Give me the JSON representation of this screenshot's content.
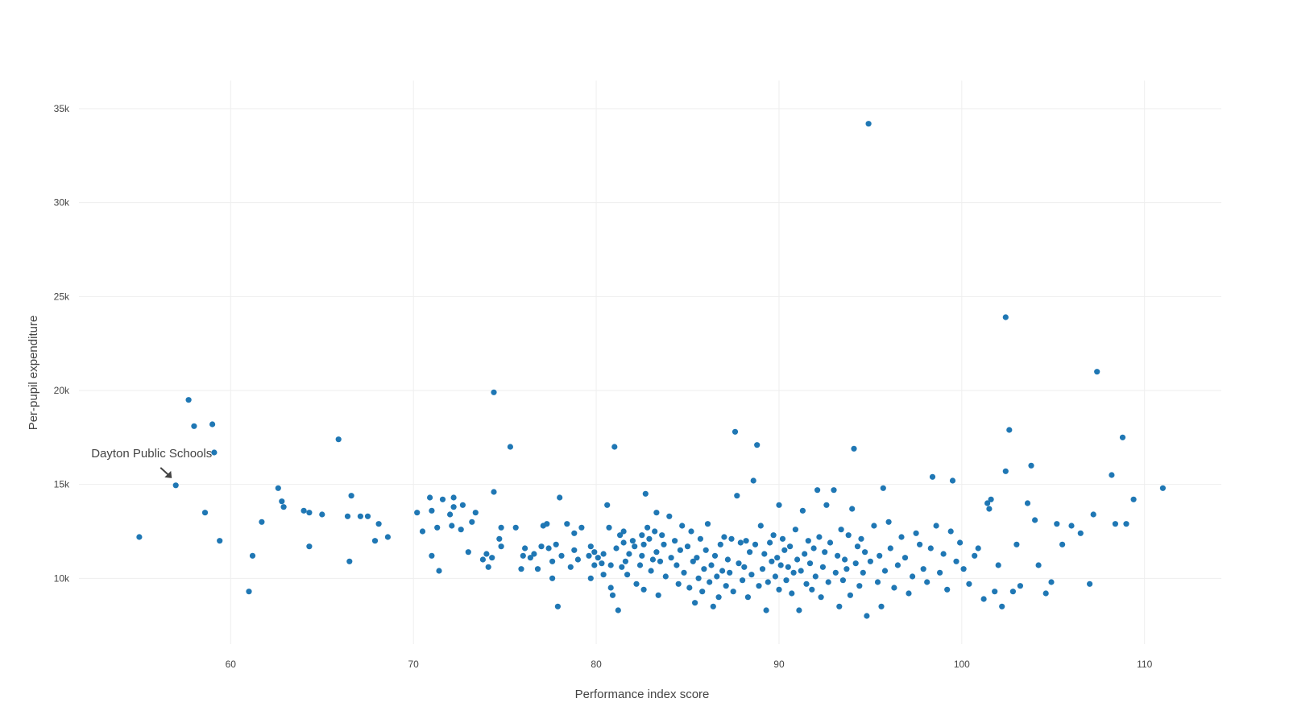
{
  "chart_data": {
    "type": "scatter",
    "title": "",
    "xlabel": "Performance index score",
    "ylabel": "Per-pupil expenditure",
    "xlim": [
      51.7,
      114.2
    ],
    "ylim": [
      6500,
      36500
    ],
    "x_ticks": [
      {
        "value": 60,
        "label": "60"
      },
      {
        "value": 70,
        "label": "70"
      },
      {
        "value": 80,
        "label": "80"
      },
      {
        "value": 90,
        "label": "90"
      },
      {
        "value": 100,
        "label": "100"
      },
      {
        "value": 110,
        "label": "110"
      }
    ],
    "y_ticks": [
      {
        "value": 10000,
        "label": "10k"
      },
      {
        "value": 15000,
        "label": "15k"
      },
      {
        "value": 20000,
        "label": "20k"
      },
      {
        "value": 25000,
        "label": "25k"
      },
      {
        "value": 30000,
        "label": "30k"
      },
      {
        "value": 35000,
        "label": "35k"
      }
    ],
    "grid": true,
    "color": "#1f77b4",
    "annotation": {
      "text": "Dayton Public Schools",
      "x": 57.0,
      "y": 14950
    },
    "points": [
      [
        55.0,
        12200
      ],
      [
        57.0,
        14950
      ],
      [
        57.7,
        19500
      ],
      [
        58.0,
        18100
      ],
      [
        58.6,
        13500
      ],
      [
        59.0,
        18200
      ],
      [
        59.1,
        16700
      ],
      [
        59.4,
        12000
      ],
      [
        61.0,
        9300
      ],
      [
        61.2,
        11200
      ],
      [
        61.7,
        13000
      ],
      [
        62.6,
        14800
      ],
      [
        62.8,
        14100
      ],
      [
        62.9,
        13800
      ],
      [
        64.0,
        13600
      ],
      [
        64.3,
        13500
      ],
      [
        64.3,
        11700
      ],
      [
        65.0,
        13400
      ],
      [
        65.9,
        17400
      ],
      [
        66.4,
        13300
      ],
      [
        66.5,
        10900
      ],
      [
        66.6,
        14400
      ],
      [
        67.1,
        13300
      ],
      [
        67.5,
        13300
      ],
      [
        67.9,
        12000
      ],
      [
        68.1,
        12900
      ],
      [
        68.6,
        12200
      ],
      [
        70.2,
        13500
      ],
      [
        70.5,
        12500
      ],
      [
        70.9,
        14300
      ],
      [
        71.0,
        13600
      ],
      [
        71.0,
        11200
      ],
      [
        71.3,
        12700
      ],
      [
        71.4,
        10400
      ],
      [
        71.6,
        14200
      ],
      [
        72.0,
        13400
      ],
      [
        72.1,
        12800
      ],
      [
        72.2,
        14300
      ],
      [
        72.2,
        13800
      ],
      [
        72.6,
        12600
      ],
      [
        72.7,
        13900
      ],
      [
        73.0,
        11400
      ],
      [
        73.2,
        13000
      ],
      [
        73.4,
        13500
      ],
      [
        73.8,
        11000
      ],
      [
        74.0,
        11300
      ],
      [
        74.1,
        10600
      ],
      [
        74.3,
        11100
      ],
      [
        74.4,
        19900
      ],
      [
        74.4,
        14600
      ],
      [
        74.7,
        12100
      ],
      [
        74.8,
        12700
      ],
      [
        74.8,
        11700
      ],
      [
        75.3,
        17000
      ],
      [
        75.6,
        12700
      ],
      [
        75.9,
        10500
      ],
      [
        76.0,
        11200
      ],
      [
        76.1,
        11600
      ],
      [
        76.4,
        11100
      ],
      [
        76.6,
        11300
      ],
      [
        76.8,
        10500
      ],
      [
        77.0,
        11700
      ],
      [
        77.1,
        12800
      ],
      [
        77.3,
        12900
      ],
      [
        77.4,
        11600
      ],
      [
        77.6,
        10000
      ],
      [
        77.6,
        10900
      ],
      [
        77.8,
        11800
      ],
      [
        77.9,
        8500
      ],
      [
        78.0,
        14300
      ],
      [
        78.1,
        11200
      ],
      [
        78.4,
        12900
      ],
      [
        78.6,
        10600
      ],
      [
        78.8,
        12400
      ],
      [
        78.8,
        11500
      ],
      [
        79.0,
        11000
      ],
      [
        79.2,
        12700
      ],
      [
        79.6,
        11200
      ],
      [
        79.7,
        10000
      ],
      [
        79.7,
        11700
      ],
      [
        79.9,
        10700
      ],
      [
        79.9,
        11400
      ],
      [
        80.1,
        11100
      ],
      [
        80.3,
        10800
      ],
      [
        80.4,
        10200
      ],
      [
        80.4,
        11300
      ],
      [
        80.6,
        13900
      ],
      [
        80.7,
        12700
      ],
      [
        80.8,
        9500
      ],
      [
        80.8,
        10700
      ],
      [
        80.9,
        9100
      ],
      [
        81.0,
        17000
      ],
      [
        81.1,
        11600
      ],
      [
        81.2,
        8300
      ],
      [
        81.3,
        12300
      ],
      [
        81.4,
        10600
      ],
      [
        81.5,
        12500
      ],
      [
        81.5,
        11900
      ],
      [
        81.6,
        10900
      ],
      [
        81.7,
        10200
      ],
      [
        81.8,
        11300
      ],
      [
        82.0,
        12000
      ],
      [
        82.1,
        11700
      ],
      [
        82.2,
        9700
      ],
      [
        82.4,
        10700
      ],
      [
        82.5,
        12300
      ],
      [
        82.5,
        11200
      ],
      [
        82.6,
        11800
      ],
      [
        82.6,
        9400
      ],
      [
        82.7,
        14500
      ],
      [
        82.8,
        12700
      ],
      [
        82.9,
        12100
      ],
      [
        83.0,
        10400
      ],
      [
        83.1,
        11000
      ],
      [
        83.2,
        12500
      ],
      [
        83.3,
        13500
      ],
      [
        83.3,
        11400
      ],
      [
        83.4,
        9100
      ],
      [
        83.5,
        10900
      ],
      [
        83.6,
        12300
      ],
      [
        83.7,
        11800
      ],
      [
        83.8,
        10100
      ],
      [
        84.0,
        13300
      ],
      [
        84.1,
        11100
      ],
      [
        84.3,
        12000
      ],
      [
        84.4,
        10700
      ],
      [
        84.5,
        9700
      ],
      [
        84.6,
        11500
      ],
      [
        84.7,
        12800
      ],
      [
        84.8,
        10300
      ],
      [
        85.0,
        11700
      ],
      [
        85.1,
        9500
      ],
      [
        85.2,
        12500
      ],
      [
        85.3,
        10900
      ],
      [
        85.4,
        8700
      ],
      [
        85.5,
        11100
      ],
      [
        85.6,
        10000
      ],
      [
        85.7,
        12100
      ],
      [
        85.8,
        9300
      ],
      [
        85.9,
        10500
      ],
      [
        86.0,
        11500
      ],
      [
        86.1,
        12900
      ],
      [
        86.2,
        9800
      ],
      [
        86.3,
        10700
      ],
      [
        86.4,
        8500
      ],
      [
        86.5,
        11200
      ],
      [
        86.6,
        10100
      ],
      [
        86.7,
        9000
      ],
      [
        86.8,
        11800
      ],
      [
        86.9,
        10400
      ],
      [
        87.0,
        12200
      ],
      [
        87.1,
        9600
      ],
      [
        87.2,
        11000
      ],
      [
        87.3,
        10300
      ],
      [
        87.4,
        12100
      ],
      [
        87.5,
        9300
      ],
      [
        87.6,
        17800
      ],
      [
        87.7,
        14400
      ],
      [
        87.8,
        10800
      ],
      [
        87.9,
        11900
      ],
      [
        88.0,
        9900
      ],
      [
        88.1,
        10600
      ],
      [
        88.2,
        12000
      ],
      [
        88.3,
        9000
      ],
      [
        88.4,
        11400
      ],
      [
        88.5,
        10200
      ],
      [
        88.6,
        15200
      ],
      [
        88.7,
        11800
      ],
      [
        88.8,
        17100
      ],
      [
        88.9,
        9600
      ],
      [
        89.0,
        12800
      ],
      [
        89.1,
        10500
      ],
      [
        89.2,
        11300
      ],
      [
        89.3,
        8300
      ],
      [
        89.4,
        9800
      ],
      [
        89.5,
        11900
      ],
      [
        89.6,
        10900
      ],
      [
        89.7,
        12300
      ],
      [
        89.8,
        10100
      ],
      [
        89.9,
        11100
      ],
      [
        90.0,
        13900
      ],
      [
        90.0,
        9400
      ],
      [
        90.1,
        10700
      ],
      [
        90.2,
        12100
      ],
      [
        90.3,
        11500
      ],
      [
        90.4,
        9900
      ],
      [
        90.5,
        10600
      ],
      [
        90.6,
        11700
      ],
      [
        90.7,
        9200
      ],
      [
        90.8,
        10300
      ],
      [
        90.9,
        12600
      ],
      [
        91.0,
        11000
      ],
      [
        91.1,
        8300
      ],
      [
        91.2,
        10400
      ],
      [
        91.3,
        13600
      ],
      [
        91.4,
        11300
      ],
      [
        91.5,
        9700
      ],
      [
        91.6,
        12000
      ],
      [
        91.7,
        10800
      ],
      [
        91.8,
        9400
      ],
      [
        91.9,
        11600
      ],
      [
        92.0,
        10100
      ],
      [
        92.1,
        14700
      ],
      [
        92.2,
        12200
      ],
      [
        92.3,
        9000
      ],
      [
        92.4,
        10600
      ],
      [
        92.5,
        11400
      ],
      [
        92.6,
        13900
      ],
      [
        92.7,
        9800
      ],
      [
        92.8,
        11900
      ],
      [
        93.0,
        14700
      ],
      [
        93.1,
        10300
      ],
      [
        93.2,
        11200
      ],
      [
        93.3,
        8500
      ],
      [
        93.4,
        12600
      ],
      [
        93.5,
        9900
      ],
      [
        93.6,
        11000
      ],
      [
        93.7,
        10500
      ],
      [
        93.8,
        12300
      ],
      [
        93.9,
        9100
      ],
      [
        94.0,
        13700
      ],
      [
        94.1,
        16900
      ],
      [
        94.2,
        10800
      ],
      [
        94.3,
        11700
      ],
      [
        94.4,
        9600
      ],
      [
        94.5,
        12100
      ],
      [
        94.6,
        10300
      ],
      [
        94.7,
        11400
      ],
      [
        94.8,
        8000
      ],
      [
        94.9,
        34200
      ],
      [
        95.0,
        10900
      ],
      [
        95.2,
        12800
      ],
      [
        95.4,
        9800
      ],
      [
        95.5,
        11200
      ],
      [
        95.6,
        8500
      ],
      [
        95.7,
        14800
      ],
      [
        95.8,
        10400
      ],
      [
        96.0,
        13000
      ],
      [
        96.1,
        11600
      ],
      [
        96.3,
        9500
      ],
      [
        96.5,
        10700
      ],
      [
        96.7,
        12200
      ],
      [
        96.9,
        11100
      ],
      [
        97.1,
        9200
      ],
      [
        97.3,
        10100
      ],
      [
        97.5,
        12400
      ],
      [
        97.7,
        11800
      ],
      [
        97.9,
        10500
      ],
      [
        98.1,
        9800
      ],
      [
        98.3,
        11600
      ],
      [
        98.4,
        15400
      ],
      [
        98.6,
        12800
      ],
      [
        98.8,
        10300
      ],
      [
        99.0,
        11300
      ],
      [
        99.2,
        9400
      ],
      [
        99.4,
        12500
      ],
      [
        99.5,
        15200
      ],
      [
        99.7,
        10900
      ],
      [
        99.9,
        11900
      ],
      [
        100.1,
        10500
      ],
      [
        100.4,
        9700
      ],
      [
        100.7,
        11200
      ],
      [
        100.9,
        11600
      ],
      [
        101.2,
        8900
      ],
      [
        101.4,
        14000
      ],
      [
        101.5,
        13700
      ],
      [
        101.6,
        14200
      ],
      [
        101.8,
        9300
      ],
      [
        102.0,
        10700
      ],
      [
        102.2,
        8500
      ],
      [
        102.4,
        23900
      ],
      [
        102.4,
        15700
      ],
      [
        102.6,
        17900
      ],
      [
        102.8,
        9300
      ],
      [
        103.0,
        11800
      ],
      [
        103.2,
        9600
      ],
      [
        103.6,
        14000
      ],
      [
        103.8,
        16000
      ],
      [
        104.0,
        13100
      ],
      [
        104.2,
        10700
      ],
      [
        104.6,
        9200
      ],
      [
        104.9,
        9800
      ],
      [
        105.2,
        12900
      ],
      [
        105.5,
        11800
      ],
      [
        106.0,
        12800
      ],
      [
        106.5,
        12400
      ],
      [
        107.0,
        9700
      ],
      [
        107.2,
        13400
      ],
      [
        107.4,
        21000
      ],
      [
        108.2,
        15500
      ],
      [
        108.4,
        12900
      ],
      [
        108.8,
        17500
      ],
      [
        109.0,
        12900
      ],
      [
        109.4,
        14200
      ],
      [
        111.0,
        14800
      ]
    ]
  }
}
